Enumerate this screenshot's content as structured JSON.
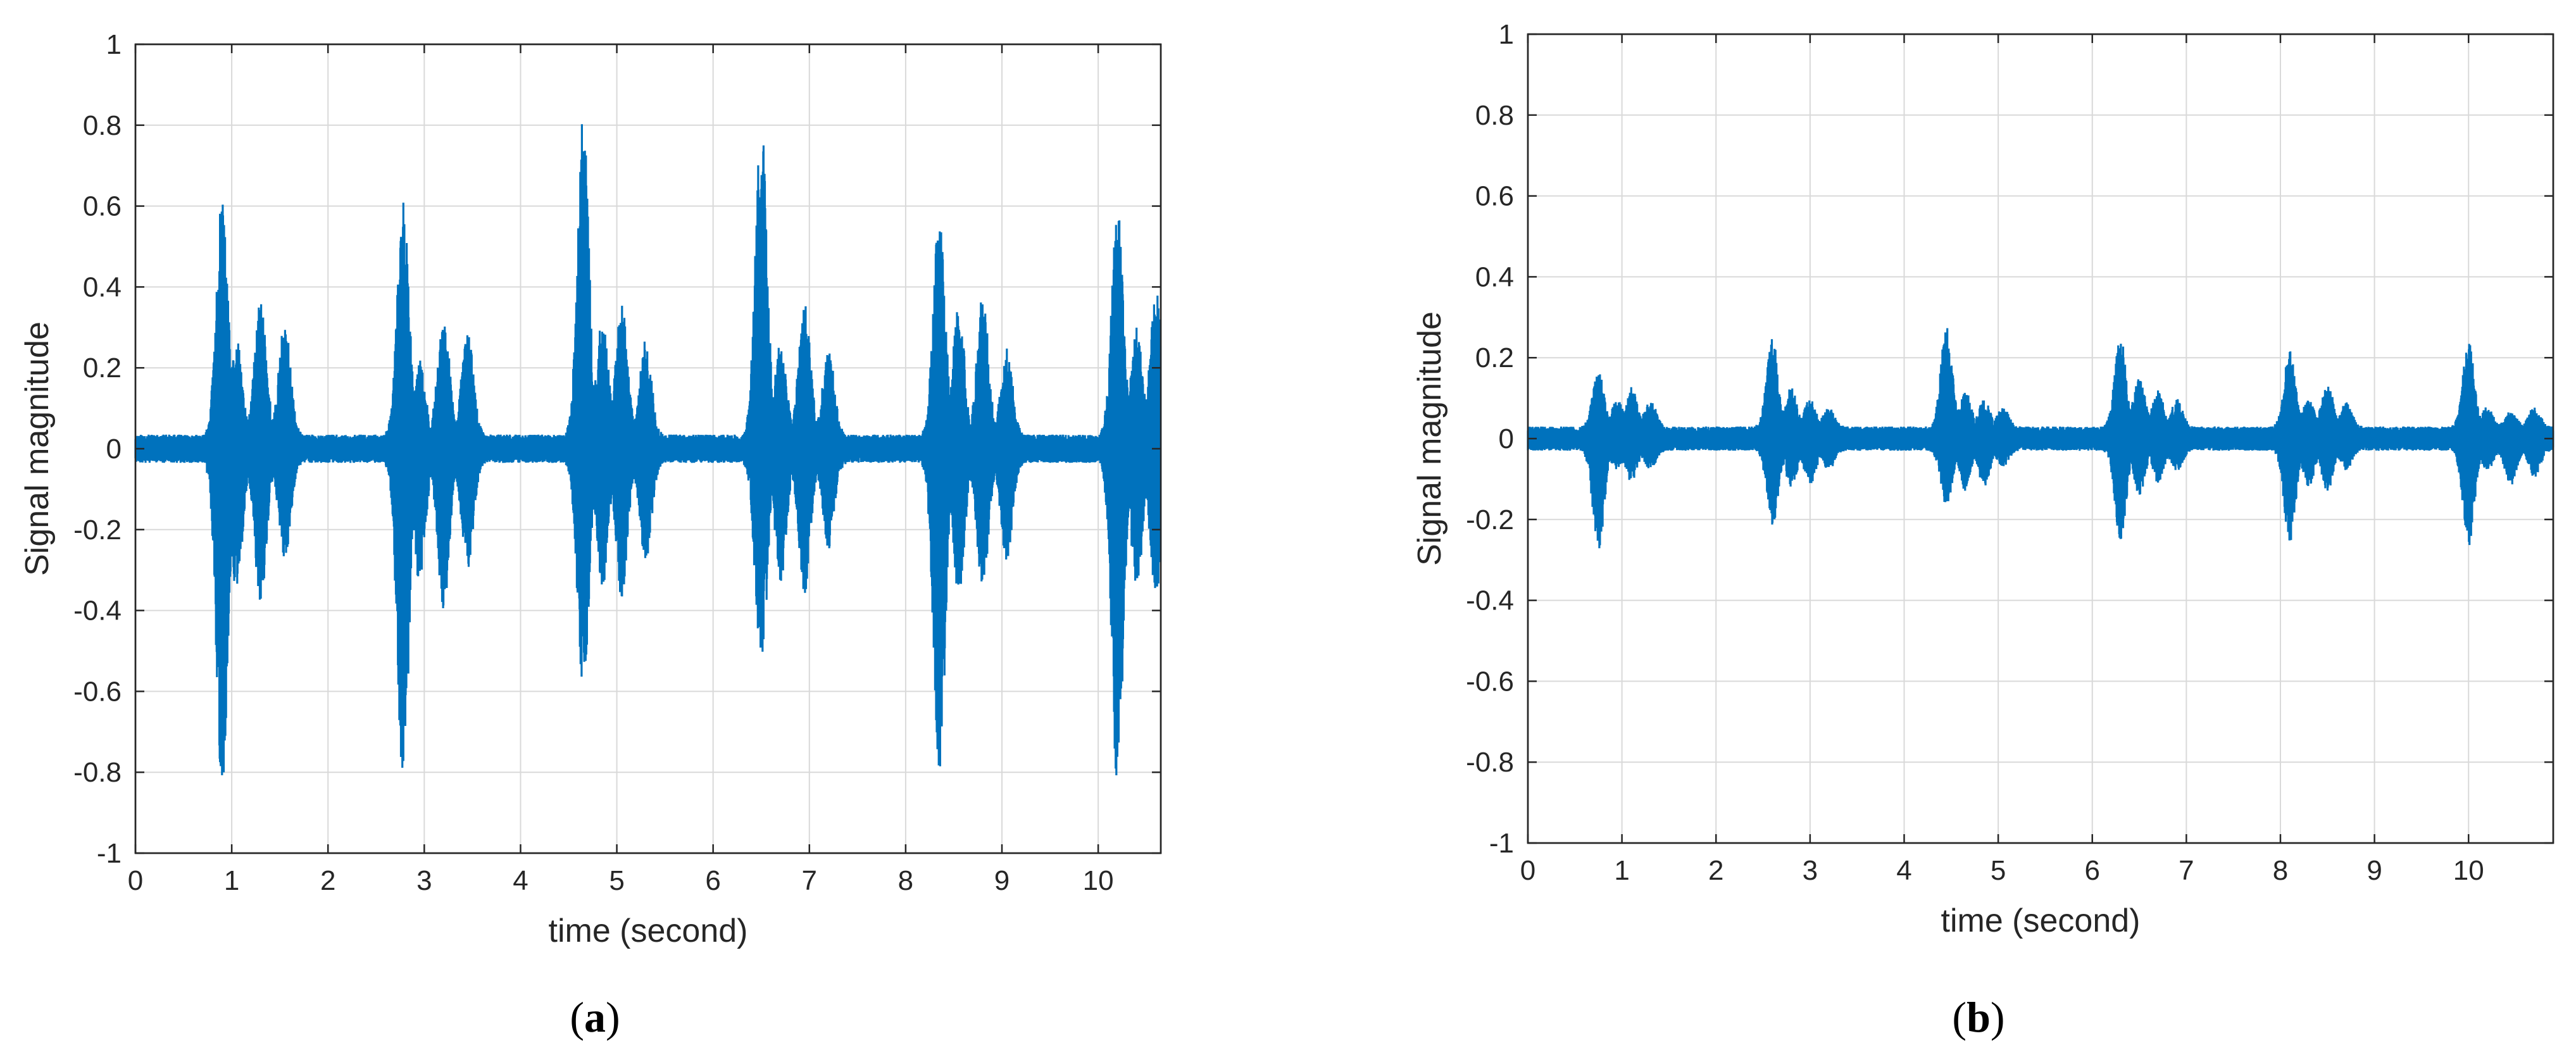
{
  "colors": {
    "signal": "#0072bd",
    "grid": "#d9d9d9",
    "axes": "#262626",
    "background": "#ffffff"
  },
  "chart_data": [
    {
      "type": "line",
      "panel_label": "a",
      "xlabel": "time (second)",
      "ylabel": "Signal magnitude",
      "xlim": [
        0,
        10.65
      ],
      "ylim": [
        -1,
        1
      ],
      "xticks": [
        0,
        1,
        2,
        3,
        4,
        5,
        6,
        7,
        8,
        9,
        10
      ],
      "yticks": [
        -1,
        -0.8,
        -0.6,
        -0.4,
        -0.2,
        0,
        0.2,
        0.4,
        0.6,
        0.8,
        1
      ],
      "ytick_labels": [
        "-1",
        "-0.8",
        "-0.6",
        "-0.4",
        "-0.2",
        "0",
        "0.2",
        "0.4",
        "0.6",
        "0.8",
        "1"
      ],
      "grid": true,
      "baseline_noise_amplitude": 0.035,
      "series": [
        {
          "envelope": [
            {
              "t": 0.9,
              "top": 0.62,
              "bottom": -0.84
            },
            {
              "t": 1.05,
              "top": 0.27,
              "bottom": -0.36
            },
            {
              "t": 1.3,
              "top": 0.38,
              "bottom": -0.4
            },
            {
              "t": 1.55,
              "top": 0.32,
              "bottom": -0.28
            },
            {
              "t": 2.78,
              "top": 0.62,
              "bottom": -0.83
            },
            {
              "t": 2.95,
              "top": 0.22,
              "bottom": -0.33
            },
            {
              "t": 3.2,
              "top": 0.34,
              "bottom": -0.4
            },
            {
              "t": 3.45,
              "top": 0.3,
              "bottom": -0.3
            },
            {
              "t": 4.65,
              "top": 0.82,
              "bottom": -0.6
            },
            {
              "t": 4.85,
              "top": 0.32,
              "bottom": -0.35
            },
            {
              "t": 5.05,
              "top": 0.37,
              "bottom": -0.37
            },
            {
              "t": 5.3,
              "top": 0.27,
              "bottom": -0.28
            },
            {
              "t": 6.5,
              "top": 0.82,
              "bottom": -0.58
            },
            {
              "t": 6.7,
              "top": 0.26,
              "bottom": -0.33
            },
            {
              "t": 6.95,
              "top": 0.37,
              "bottom": -0.36
            },
            {
              "t": 7.2,
              "top": 0.25,
              "bottom": -0.25
            },
            {
              "t": 8.35,
              "top": 0.6,
              "bottom": -0.82
            },
            {
              "t": 8.55,
              "top": 0.36,
              "bottom": -0.37
            },
            {
              "t": 8.8,
              "top": 0.38,
              "bottom": -0.36
            },
            {
              "t": 9.05,
              "top": 0.25,
              "bottom": -0.28
            },
            {
              "t": 10.2,
              "top": 0.6,
              "bottom": -0.83
            },
            {
              "t": 10.4,
              "top": 0.3,
              "bottom": -0.35
            },
            {
              "t": 10.6,
              "top": 0.4,
              "bottom": -0.37
            }
          ]
        }
      ]
    },
    {
      "type": "line",
      "panel_label": "b",
      "xlabel": "time (second)",
      "ylabel": "Signal magnitude",
      "xlim": [
        0,
        10.9
      ],
      "ylim": [
        -1,
        1
      ],
      "xticks": [
        0,
        1,
        2,
        3,
        4,
        5,
        6,
        7,
        8,
        9,
        10
      ],
      "yticks": [
        -1,
        -0.8,
        -0.6,
        -0.4,
        -0.2,
        0,
        0.2,
        0.4,
        0.6,
        0.8,
        1
      ],
      "ytick_labels": [
        "-1",
        "-0.8",
        "-0.6",
        "-0.4",
        "-0.2",
        "0",
        "0.2",
        "0.4",
        "0.6",
        "0.8",
        "1"
      ],
      "grid": true,
      "baseline_noise_amplitude": 0.03,
      "series": [
        {
          "envelope": [
            {
              "t": 0.75,
              "top": 0.17,
              "bottom": -0.28
            },
            {
              "t": 0.95,
              "top": 0.1,
              "bottom": -0.08
            },
            {
              "t": 1.1,
              "top": 0.13,
              "bottom": -0.11
            },
            {
              "t": 1.3,
              "top": 0.1,
              "bottom": -0.08
            },
            {
              "t": 2.6,
              "top": 0.25,
              "bottom": -0.22
            },
            {
              "t": 2.8,
              "top": 0.13,
              "bottom": -0.12
            },
            {
              "t": 3.0,
              "top": 0.1,
              "bottom": -0.12
            },
            {
              "t": 3.2,
              "top": 0.08,
              "bottom": -0.08
            },
            {
              "t": 4.45,
              "top": 0.28,
              "bottom": -0.17
            },
            {
              "t": 4.65,
              "top": 0.12,
              "bottom": -0.13
            },
            {
              "t": 4.85,
              "top": 0.1,
              "bottom": -0.12
            },
            {
              "t": 5.05,
              "top": 0.08,
              "bottom": -0.07
            },
            {
              "t": 6.3,
              "top": 0.26,
              "bottom": -0.25
            },
            {
              "t": 6.5,
              "top": 0.16,
              "bottom": -0.14
            },
            {
              "t": 6.7,
              "top": 0.12,
              "bottom": -0.11
            },
            {
              "t": 6.9,
              "top": 0.1,
              "bottom": -0.08
            },
            {
              "t": 8.1,
              "top": 0.22,
              "bottom": -0.26
            },
            {
              "t": 8.3,
              "top": 0.1,
              "bottom": -0.12
            },
            {
              "t": 8.5,
              "top": 0.14,
              "bottom": -0.13
            },
            {
              "t": 8.7,
              "top": 0.09,
              "bottom": -0.08
            },
            {
              "t": 10.0,
              "top": 0.24,
              "bottom": -0.27
            },
            {
              "t": 10.2,
              "top": 0.08,
              "bottom": -0.08
            },
            {
              "t": 10.45,
              "top": 0.07,
              "bottom": -0.12
            },
            {
              "t": 10.7,
              "top": 0.08,
              "bottom": -0.1
            }
          ]
        }
      ]
    }
  ]
}
